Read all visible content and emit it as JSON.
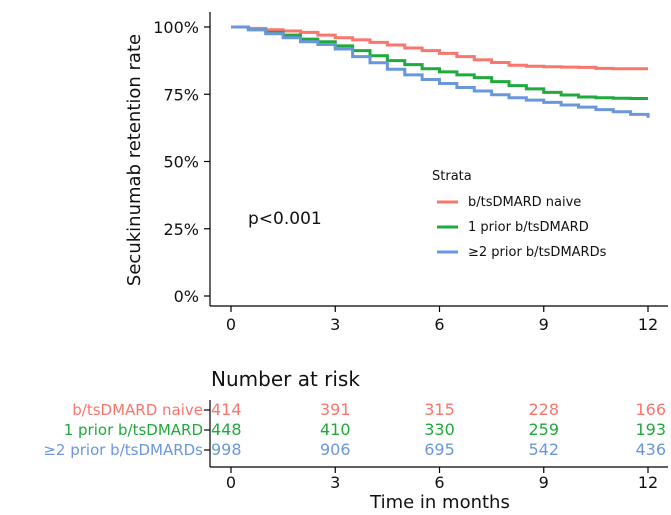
{
  "chart_data": {
    "type": "line",
    "step": true,
    "ylabel": "Secukinumab retention rate",
    "xlabel": "Time in months",
    "xlim": [
      0,
      12
    ],
    "ylim": [
      0,
      1
    ],
    "x_ticks": [
      0,
      3,
      6,
      9,
      12
    ],
    "y_ticks": [
      0,
      0.25,
      0.5,
      0.75,
      1.0
    ],
    "y_tick_labels": [
      "0%",
      "25%",
      "50%",
      "75%",
      "100%"
    ],
    "annotation": "p<0.001",
    "legend": {
      "title": "Strata",
      "placement": "right"
    },
    "series": [
      {
        "name": "b/tsDMARD naive",
        "color": "#f8766d",
        "x": [
          0,
          0.5,
          1,
          1.5,
          2,
          2.5,
          3,
          3.5,
          4,
          4.5,
          5,
          5.5,
          6,
          6.5,
          7,
          7.5,
          8,
          8.5,
          9,
          9.5,
          10,
          10.5,
          11,
          11.5,
          12
        ],
        "y": [
          1.0,
          0.995,
          0.99,
          0.985,
          0.98,
          0.97,
          0.96,
          0.952,
          0.943,
          0.933,
          0.922,
          0.912,
          0.902,
          0.89,
          0.878,
          0.868,
          0.858,
          0.854,
          0.852,
          0.851,
          0.85,
          0.846,
          0.845,
          0.845,
          0.845
        ]
      },
      {
        "name": "1 prior b/tsDMARD",
        "color": "#1faa3c",
        "x": [
          0,
          0.5,
          1,
          1.5,
          2,
          2.5,
          3,
          3.5,
          4,
          4.5,
          5,
          5.5,
          6,
          6.5,
          7,
          7.5,
          8,
          8.5,
          9,
          9.5,
          10,
          10.5,
          11,
          11.5,
          12
        ],
        "y": [
          1.0,
          0.99,
          0.98,
          0.97,
          0.955,
          0.945,
          0.93,
          0.912,
          0.893,
          0.875,
          0.86,
          0.845,
          0.833,
          0.822,
          0.812,
          0.797,
          0.782,
          0.77,
          0.757,
          0.747,
          0.74,
          0.737,
          0.735,
          0.734,
          0.734
        ]
      },
      {
        "name": "≥2 prior b/tsDMARDs",
        "color": "#6a97dc",
        "x": [
          0,
          0.5,
          1,
          1.5,
          2,
          2.5,
          3,
          3.5,
          4,
          4.5,
          5,
          5.5,
          6,
          6.5,
          7,
          7.5,
          8,
          8.5,
          9,
          9.5,
          10,
          10.5,
          11,
          11.5,
          12
        ],
        "y": [
          1.0,
          0.99,
          0.975,
          0.96,
          0.945,
          0.935,
          0.918,
          0.89,
          0.867,
          0.843,
          0.822,
          0.805,
          0.79,
          0.775,
          0.762,
          0.748,
          0.737,
          0.728,
          0.72,
          0.71,
          0.702,
          0.693,
          0.685,
          0.675,
          0.662
        ]
      }
    ],
    "risk_table": {
      "title": "Number at risk",
      "times": [
        0,
        3,
        6,
        9,
        12
      ],
      "rows": [
        {
          "label": "b/tsDMARD naive",
          "color": "#f8766d",
          "values": [
            "414",
            "391",
            "315",
            "228",
            "166"
          ]
        },
        {
          "label": "1 prior b/tsDMARD",
          "color": "#1faa3c",
          "values": [
            "448",
            "410",
            "330",
            "259",
            "193"
          ]
        },
        {
          "label": "≥2 prior b/tsDMARDs",
          "color": "#6a97dc",
          "values": [
            "998",
            "906",
            "695",
            "542",
            "436"
          ]
        }
      ]
    }
  }
}
